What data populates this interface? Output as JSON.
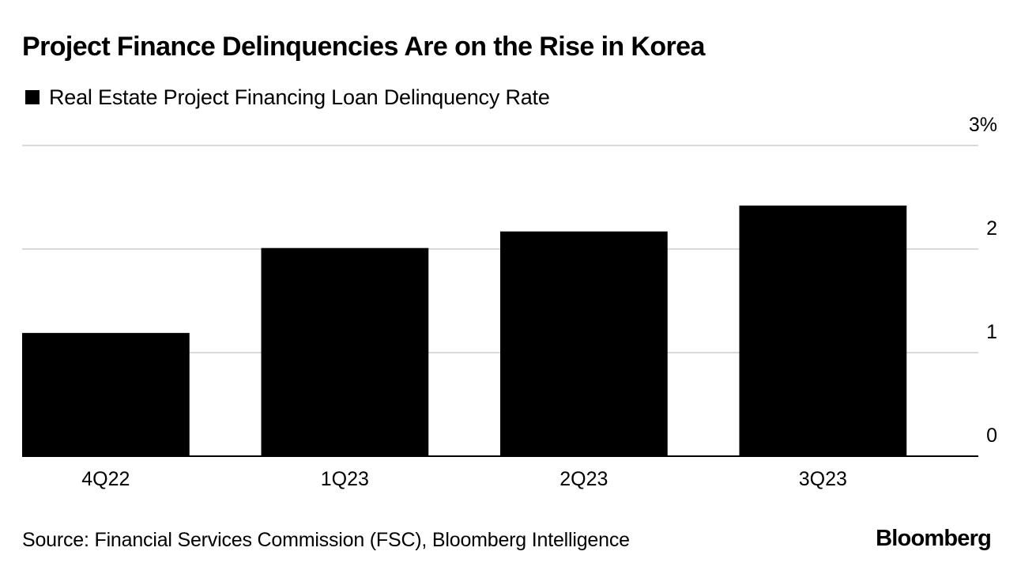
{
  "header": {
    "title": "Project Finance Delinquencies Are on the Rise in Korea"
  },
  "legend": {
    "label": "Real Estate Project Financing Loan Delinquency Rate",
    "color": "#000000"
  },
  "footer": {
    "source": "Source: Financial Services Commission (FSC), Bloomberg Intelligence",
    "brand": "Bloomberg"
  },
  "chart_data": {
    "type": "bar",
    "title": "Project Finance Delinquencies Are on the Rise in Korea",
    "categories": [
      "4Q22",
      "1Q23",
      "2Q23",
      "3Q23"
    ],
    "series": [
      {
        "name": "Real Estate Project Financing Loan Delinquency Rate",
        "values": [
          1.19,
          2.01,
          2.17,
          2.42
        ],
        "color": "#000000"
      }
    ],
    "xlabel": "",
    "ylabel": "",
    "ylim": [
      0,
      3
    ],
    "yticks": [
      0,
      1,
      2,
      3
    ],
    "ytick_labels": [
      "0",
      "1",
      "2",
      "3%"
    ],
    "y_axis_position": "right",
    "grid": true,
    "gridline_color": "#d9d9d9",
    "legend_position": "top-left"
  }
}
